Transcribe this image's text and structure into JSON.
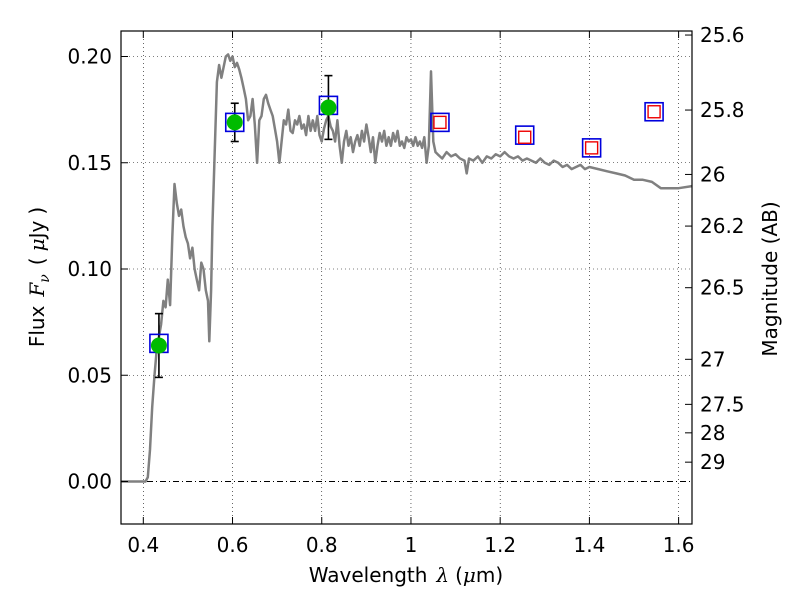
{
  "chart_data": {
    "type": "line",
    "xlabel": "Wavelength",
    "xlabel_symbol": "λ",
    "xlabel_unit_open": "(",
    "xlabel_unit_mu": "μ",
    "xlabel_unit_rest": "m)",
    "ylabel": "Flux",
    "ylabel_symbol": "F",
    "ylabel_subscript": "ν",
    "ylabel_unit_open": "(",
    "ylabel_unit_mu": "μ",
    "ylabel_unit_rest": "Jy",
    "ylabel_unit_close": ")",
    "y2label": "Magnitude (AB)",
    "xlim": [
      0.35,
      1.63
    ],
    "ylim": [
      -0.02,
      0.212
    ],
    "grid": true,
    "x_ticks": [
      {
        "value": 0.4,
        "label": "0.4"
      },
      {
        "value": 0.6,
        "label": "0.6"
      },
      {
        "value": 0.8,
        "label": "0.8"
      },
      {
        "value": 1.0,
        "label": "1"
      },
      {
        "value": 1.2,
        "label": "1.2"
      },
      {
        "value": 1.4,
        "label": "1.4"
      },
      {
        "value": 1.6,
        "label": "1.6"
      }
    ],
    "y_ticks": [
      {
        "value": 0.0,
        "label": "0.00"
      },
      {
        "value": 0.05,
        "label": "0.05"
      },
      {
        "value": 0.1,
        "label": "0.10"
      },
      {
        "value": 0.15,
        "label": "0.15"
      },
      {
        "value": 0.2,
        "label": "0.20"
      }
    ],
    "y2_ticks": [
      {
        "label": "25.6",
        "flux": 0.2101
      },
      {
        "label": "25.8",
        "flux": 0.1748
      },
      {
        "label": "26",
        "flux": 0.1445
      },
      {
        "label": "26.2",
        "flux": 0.1202
      },
      {
        "label": "26.5",
        "flux": 0.0912
      },
      {
        "label": "27",
        "flux": 0.0575
      },
      {
        "label": "27.5",
        "flux": 0.0363
      },
      {
        "label": "28",
        "flux": 0.0229
      },
      {
        "label": "29",
        "flux": 0.0091
      }
    ],
    "series": [
      {
        "kind": "model_spectrum",
        "color": "#808080",
        "points": [
          [
            0.35,
            0.0
          ],
          [
            0.405,
            0.0
          ],
          [
            0.41,
            0.002
          ],
          [
            0.415,
            0.015
          ],
          [
            0.42,
            0.035
          ],
          [
            0.425,
            0.05
          ],
          [
            0.43,
            0.062
          ],
          [
            0.435,
            0.068
          ],
          [
            0.44,
            0.074
          ],
          [
            0.445,
            0.085
          ],
          [
            0.45,
            0.082
          ],
          [
            0.455,
            0.095
          ],
          [
            0.46,
            0.083
          ],
          [
            0.465,
            0.115
          ],
          [
            0.47,
            0.14
          ],
          [
            0.475,
            0.131
          ],
          [
            0.48,
            0.125
          ],
          [
            0.485,
            0.128
          ],
          [
            0.49,
            0.12
          ],
          [
            0.495,
            0.115
          ],
          [
            0.5,
            0.112
          ],
          [
            0.505,
            0.105
          ],
          [
            0.51,
            0.11
          ],
          [
            0.515,
            0.1
          ],
          [
            0.52,
            0.095
          ],
          [
            0.525,
            0.09
          ],
          [
            0.53,
            0.103
          ],
          [
            0.535,
            0.1
          ],
          [
            0.54,
            0.09
          ],
          [
            0.545,
            0.085
          ],
          [
            0.548,
            0.066
          ],
          [
            0.552,
            0.09
          ],
          [
            0.555,
            0.12
          ],
          [
            0.56,
            0.155
          ],
          [
            0.565,
            0.188
          ],
          [
            0.57,
            0.196
          ],
          [
            0.575,
            0.19
          ],
          [
            0.58,
            0.195
          ],
          [
            0.585,
            0.2
          ],
          [
            0.59,
            0.201
          ],
          [
            0.595,
            0.198
          ],
          [
            0.6,
            0.2
          ],
          [
            0.605,
            0.195
          ],
          [
            0.61,
            0.197
          ],
          [
            0.615,
            0.194
          ],
          [
            0.62,
            0.19
          ],
          [
            0.625,
            0.185
          ],
          [
            0.63,
            0.18
          ],
          [
            0.635,
            0.17
          ],
          [
            0.64,
            0.172
          ],
          [
            0.645,
            0.18
          ],
          [
            0.65,
            0.168
          ],
          [
            0.655,
            0.15
          ],
          [
            0.66,
            0.17
          ],
          [
            0.665,
            0.172
          ],
          [
            0.67,
            0.18
          ],
          [
            0.675,
            0.182
          ],
          [
            0.68,
            0.178
          ],
          [
            0.685,
            0.175
          ],
          [
            0.69,
            0.172
          ],
          [
            0.695,
            0.166
          ],
          [
            0.7,
            0.16
          ],
          [
            0.705,
            0.15
          ],
          [
            0.71,
            0.16
          ],
          [
            0.715,
            0.17
          ],
          [
            0.72,
            0.168
          ],
          [
            0.725,
            0.175
          ],
          [
            0.73,
            0.165
          ],
          [
            0.735,
            0.164
          ],
          [
            0.74,
            0.17
          ],
          [
            0.745,
            0.168
          ],
          [
            0.75,
            0.172
          ],
          [
            0.755,
            0.166
          ],
          [
            0.76,
            0.168
          ],
          [
            0.765,
            0.163
          ],
          [
            0.77,
            0.172
          ],
          [
            0.775,
            0.165
          ],
          [
            0.78,
            0.17
          ],
          [
            0.785,
            0.165
          ],
          [
            0.79,
            0.172
          ],
          [
            0.795,
            0.163
          ],
          [
            0.8,
            0.16
          ],
          [
            0.805,
            0.166
          ],
          [
            0.81,
            0.17
          ],
          [
            0.815,
            0.172
          ],
          [
            0.82,
            0.167
          ],
          [
            0.825,
            0.165
          ],
          [
            0.83,
            0.16
          ],
          [
            0.835,
            0.17
          ],
          [
            0.84,
            0.158
          ],
          [
            0.845,
            0.15
          ],
          [
            0.85,
            0.16
          ],
          [
            0.855,
            0.165
          ],
          [
            0.86,
            0.158
          ],
          [
            0.865,
            0.162
          ],
          [
            0.87,
            0.155
          ],
          [
            0.875,
            0.16
          ],
          [
            0.88,
            0.163
          ],
          [
            0.885,
            0.158
          ],
          [
            0.89,
            0.165
          ],
          [
            0.895,
            0.16
          ],
          [
            0.9,
            0.168
          ],
          [
            0.905,
            0.162
          ],
          [
            0.91,
            0.155
          ],
          [
            0.915,
            0.162
          ],
          [
            0.92,
            0.15
          ],
          [
            0.925,
            0.158
          ],
          [
            0.93,
            0.164
          ],
          [
            0.935,
            0.16
          ],
          [
            0.94,
            0.165
          ],
          [
            0.945,
            0.158
          ],
          [
            0.95,
            0.162
          ],
          [
            0.955,
            0.158
          ],
          [
            0.96,
            0.164
          ],
          [
            0.965,
            0.16
          ],
          [
            0.97,
            0.165
          ],
          [
            0.975,
            0.158
          ],
          [
            0.98,
            0.16
          ],
          [
            0.985,
            0.157
          ],
          [
            0.99,
            0.162
          ],
          [
            0.995,
            0.16
          ],
          [
            1.0,
            0.161
          ],
          [
            1.005,
            0.158
          ],
          [
            1.01,
            0.162
          ],
          [
            1.015,
            0.158
          ],
          [
            1.02,
            0.16
          ],
          [
            1.025,
            0.157
          ],
          [
            1.03,
            0.162
          ],
          [
            1.035,
            0.15
          ],
          [
            1.04,
            0.158
          ],
          [
            1.045,
            0.193
          ],
          [
            1.05,
            0.16
          ],
          [
            1.055,
            0.155
          ],
          [
            1.06,
            0.154
          ],
          [
            1.07,
            0.152
          ],
          [
            1.08,
            0.155
          ],
          [
            1.09,
            0.153
          ],
          [
            1.1,
            0.154
          ],
          [
            1.11,
            0.152
          ],
          [
            1.12,
            0.151
          ],
          [
            1.125,
            0.145
          ],
          [
            1.13,
            0.152
          ],
          [
            1.14,
            0.151
          ],
          [
            1.15,
            0.153
          ],
          [
            1.16,
            0.15
          ],
          [
            1.17,
            0.153
          ],
          [
            1.18,
            0.152
          ],
          [
            1.19,
            0.154
          ],
          [
            1.2,
            0.153
          ],
          [
            1.21,
            0.155
          ],
          [
            1.22,
            0.153
          ],
          [
            1.23,
            0.152
          ],
          [
            1.24,
            0.153
          ],
          [
            1.25,
            0.151
          ],
          [
            1.26,
            0.152
          ],
          [
            1.27,
            0.151
          ],
          [
            1.28,
            0.15
          ],
          [
            1.29,
            0.152
          ],
          [
            1.3,
            0.15
          ],
          [
            1.31,
            0.149
          ],
          [
            1.32,
            0.151
          ],
          [
            1.33,
            0.15
          ],
          [
            1.34,
            0.148
          ],
          [
            1.35,
            0.149
          ],
          [
            1.36,
            0.147
          ],
          [
            1.37,
            0.148
          ],
          [
            1.38,
            0.149
          ],
          [
            1.39,
            0.147
          ],
          [
            1.4,
            0.148
          ],
          [
            1.42,
            0.147
          ],
          [
            1.44,
            0.146
          ],
          [
            1.46,
            0.145
          ],
          [
            1.48,
            0.144
          ],
          [
            1.5,
            0.142
          ],
          [
            1.52,
            0.142
          ],
          [
            1.54,
            0.141
          ],
          [
            1.56,
            0.138
          ],
          [
            1.58,
            0.138
          ],
          [
            1.6,
            0.138
          ],
          [
            1.63,
            0.139
          ]
        ]
      },
      {
        "kind": "observed_photometry",
        "marker": "circle",
        "color": "#00bb00",
        "points": [
          {
            "x": 0.435,
            "y": 0.064,
            "yerr": 0.015
          },
          {
            "x": 0.605,
            "y": 0.169,
            "yerr": 0.009
          },
          {
            "x": 0.815,
            "y": 0.176,
            "yerr": 0.015
          }
        ]
      },
      {
        "kind": "model_photometry",
        "marker": "square",
        "color": "#0000dd",
        "points": [
          {
            "x": 0.435,
            "y": 0.065
          },
          {
            "x": 0.605,
            "y": 0.169
          },
          {
            "x": 0.815,
            "y": 0.177
          },
          {
            "x": 1.065,
            "y": 0.169
          },
          {
            "x": 1.255,
            "y": 0.163
          },
          {
            "x": 1.405,
            "y": 0.157
          },
          {
            "x": 1.545,
            "y": 0.174
          }
        ]
      },
      {
        "kind": "predicted_photometry",
        "marker": "square",
        "color": "#ee0000",
        "points": [
          {
            "x": 1.065,
            "y": 0.169
          },
          {
            "x": 1.255,
            "y": 0.162
          },
          {
            "x": 1.405,
            "y": 0.157
          },
          {
            "x": 1.545,
            "y": 0.174
          }
        ]
      }
    ]
  }
}
